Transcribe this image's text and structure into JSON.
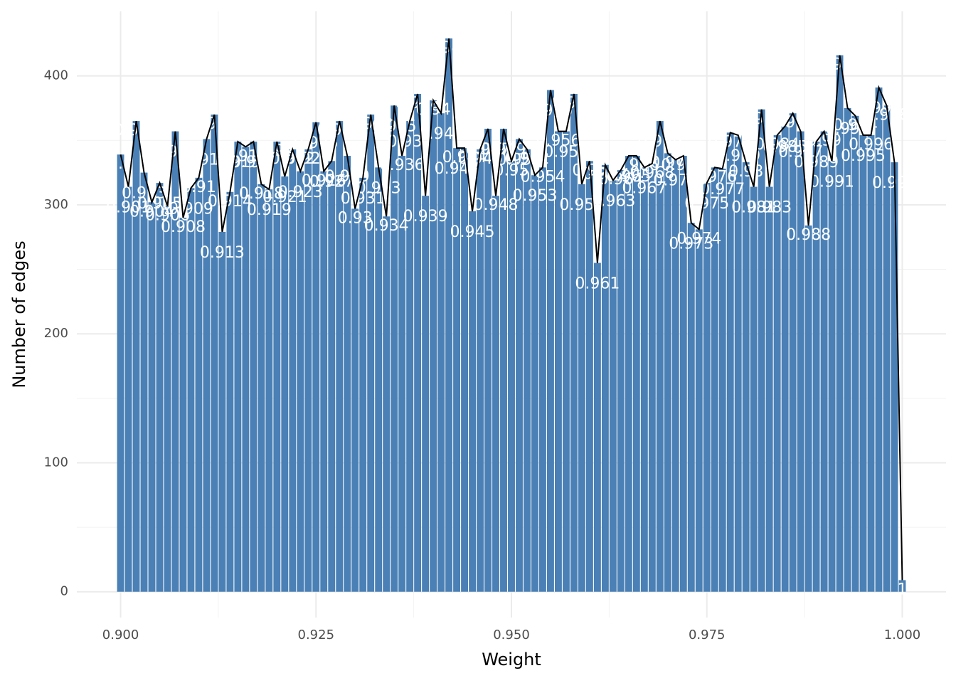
{
  "chart_data": {
    "type": "bar",
    "x_label": "Weight",
    "y_label": "Number of edges",
    "x": [
      0.9,
      0.901,
      0.902,
      0.903,
      0.904,
      0.905,
      0.906,
      0.907,
      0.908,
      0.909,
      0.91,
      0.911,
      0.912,
      0.913,
      0.914,
      0.915,
      0.916,
      0.917,
      0.918,
      0.919,
      0.92,
      0.921,
      0.922,
      0.923,
      0.924,
      0.925,
      0.926,
      0.927,
      0.928,
      0.929,
      0.93,
      0.931,
      0.932,
      0.933,
      0.934,
      0.935,
      0.936,
      0.937,
      0.938,
      0.939,
      0.94,
      0.941,
      0.942,
      0.943,
      0.944,
      0.945,
      0.946,
      0.947,
      0.948,
      0.949,
      0.95,
      0.951,
      0.952,
      0.953,
      0.954,
      0.955,
      0.956,
      0.957,
      0.958,
      0.959,
      0.96,
      0.961,
      0.962,
      0.963,
      0.964,
      0.965,
      0.966,
      0.967,
      0.968,
      0.969,
      0.97,
      0.971,
      0.972,
      0.973,
      0.974,
      0.975,
      0.976,
      0.977,
      0.978,
      0.979,
      0.98,
      0.981,
      0.982,
      0.983,
      0.984,
      0.985,
      0.986,
      0.987,
      0.988,
      0.989,
      0.99,
      0.991,
      0.992,
      0.993,
      0.994,
      0.995,
      0.996,
      0.997,
      0.998,
      0.999,
      1
    ],
    "values": [
      339,
      314,
      365,
      325,
      302,
      317,
      299,
      357,
      290,
      313,
      321,
      351,
      370,
      279,
      310,
      349,
      345,
      349,
      316,
      312,
      349,
      322,
      343,
      326,
      343,
      364,
      326,
      334,
      365,
      338,
      297,
      321,
      370,
      329,
      291,
      377,
      338,
      365,
      386,
      307,
      381,
      371,
      429,
      344,
      344,
      295,
      343,
      359,
      307,
      359,
      334,
      351,
      343,
      323,
      329,
      389,
      357,
      357,
      386,
      316,
      334,
      255,
      331,
      319,
      327,
      338,
      338,
      329,
      332,
      365,
      340,
      335,
      338,
      286,
      281,
      317,
      329,
      328,
      356,
      354,
      333,
      314,
      374,
      314,
      354,
      361,
      371,
      357,
      284,
      349,
      357,
      334,
      416,
      375,
      369,
      354,
      354,
      391,
      377,
      333,
      9
    ],
    "color": "#4a80b5",
    "line_color": "#000000",
    "xlim": [
      0.8944,
      1.0056
    ],
    "xticks": [
      {
        "value": 0.9,
        "label": "0.900"
      },
      {
        "value": 0.925,
        "label": "0.925"
      },
      {
        "value": 0.95,
        "label": "0.950"
      },
      {
        "value": 0.975,
        "label": "0.975"
      },
      {
        "value": 1,
        "label": "1.000"
      }
    ],
    "ylim": [
      -20,
      450
    ],
    "yticks": [
      0,
      100,
      200,
      300,
      400
    ],
    "grid": true,
    "minor_grid": true
  }
}
